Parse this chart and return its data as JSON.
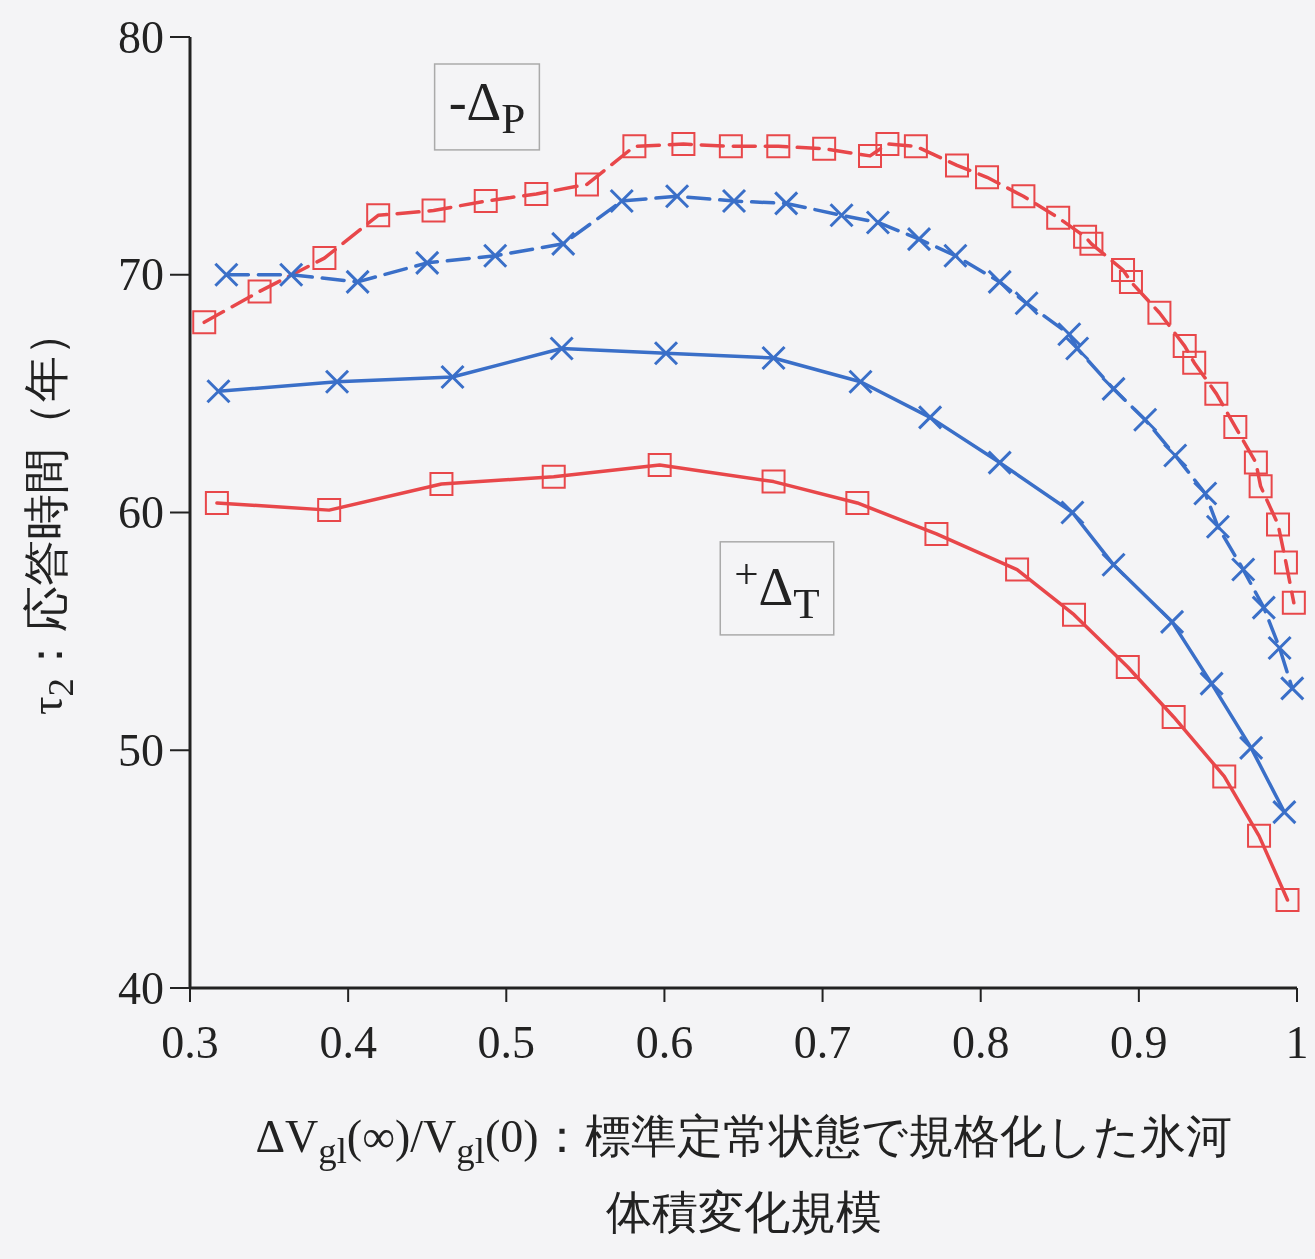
{
  "chart_data": {
    "type": "line",
    "xlabel": "ΔV$_{gl}$(∞)/V$_{gl}$(0)：標準定常状態で規格化した氷河体積変化規模",
    "ylabel": "τ$_{2}$：応答時間（年）",
    "xlim": [
      0.3,
      1.0
    ],
    "ylim": [
      40,
      80
    ],
    "xticks": [
      0.3,
      0.4,
      0.5,
      0.6,
      0.7,
      0.8,
      0.9,
      {
        "value": 1.0,
        "label": "1"
      }
    ],
    "yticks": [
      40,
      50,
      60,
      70,
      80
    ],
    "grid": false,
    "legend": false,
    "annotations": [
      "-Δ$_{P}$",
      "$^{+}$Δ$_{T}$"
    ],
    "series": [
      {
        "color": "#e8474a",
        "marker": "square",
        "line_style": "dashed",
        "x": [
          0.309,
          0.344,
          0.385,
          0.419,
          0.454,
          0.487,
          0.519,
          0.551,
          0.581,
          0.612,
          0.642,
          0.672,
          0.701,
          0.73,
          0.741,
          0.759,
          0.785,
          0.804,
          0.827,
          0.849,
          0.866,
          0.87,
          0.89,
          0.895,
          0.913,
          0.929,
          0.935,
          0.949,
          0.961,
          0.974,
          0.977,
          0.988,
          0.993,
          0.998
        ],
        "values": [
          68.0,
          69.3,
          70.7,
          72.5,
          72.7,
          73.1,
          73.4,
          73.8,
          75.4,
          75.5,
          75.4,
          75.4,
          75.3,
          75.0,
          75.5,
          75.4,
          74.6,
          74.1,
          73.3,
          72.4,
          71.6,
          71.3,
          70.2,
          69.7,
          68.4,
          67.0,
          66.3,
          65.0,
          63.6,
          62.1,
          61.1,
          59.5,
          57.9,
          56.2
        ]
      },
      {
        "color": "#3a6fc8",
        "marker": "cross",
        "line_style": "dashed",
        "x": [
          0.323,
          0.364,
          0.406,
          0.45,
          0.493,
          0.536,
          0.573,
          0.608,
          0.644,
          0.677,
          0.712,
          0.735,
          0.761,
          0.784,
          0.812,
          0.829,
          0.856,
          0.861,
          0.884,
          0.904,
          0.923,
          0.942,
          0.95,
          0.966,
          0.979,
          0.989,
          0.997
        ],
        "values": [
          70.0,
          70.0,
          69.7,
          70.5,
          70.8,
          71.3,
          73.1,
          73.3,
          73.1,
          73.0,
          72.5,
          72.2,
          71.5,
          70.8,
          69.7,
          68.8,
          67.5,
          66.9,
          65.2,
          63.9,
          62.4,
          60.8,
          59.4,
          57.6,
          56.0,
          54.3,
          52.6
        ]
      },
      {
        "color": "#3a6fc8",
        "marker": "cross",
        "line_style": "solid",
        "x": [
          0.318,
          0.393,
          0.466,
          0.535,
          0.601,
          0.669,
          0.724,
          0.768,
          0.812,
          0.858,
          0.884,
          0.921,
          0.946,
          0.971,
          0.992
        ],
        "values": [
          65.1,
          65.5,
          65.7,
          66.9,
          66.7,
          66.5,
          65.5,
          64.0,
          62.1,
          60.0,
          57.8,
          55.4,
          52.8,
          50.1,
          47.4
        ]
      },
      {
        "color": "#e8474a",
        "marker": "square",
        "line_style": "solid",
        "x": [
          0.317,
          0.388,
          0.459,
          0.53,
          0.597,
          0.669,
          0.722,
          0.772,
          0.823,
          0.859,
          0.893,
          0.922,
          0.954,
          0.976,
          0.994
        ],
        "values": [
          60.4,
          60.1,
          61.2,
          61.5,
          62.0,
          61.3,
          60.4,
          59.1,
          57.6,
          55.7,
          53.5,
          51.4,
          48.9,
          46.4,
          43.7
        ]
      }
    ]
  }
}
